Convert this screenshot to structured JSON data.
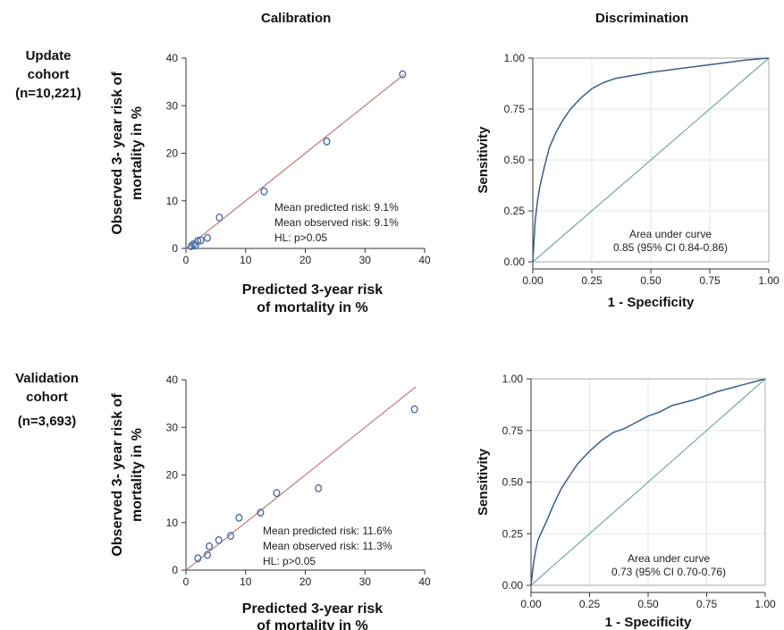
{
  "column_titles": {
    "calibration": "Calibration",
    "discrimination": "Discrimination"
  },
  "cohorts": [
    {
      "name_line1": "Update",
      "name_line2": "cohort",
      "n": "(n=10,221)"
    },
    {
      "name_line1": "Validation",
      "name_line2": "cohort",
      "n": "(n=3,693)"
    }
  ],
  "chart_data": [
    {
      "type": "scatter",
      "title": "Calibration",
      "cohort": "Update cohort (n=10,221)",
      "xlabel": [
        "Predicted 3-year risk",
        "of mortality in %"
      ],
      "ylabel": [
        "Observed 3- year risk of",
        "mortality in %"
      ],
      "xlim": [
        0,
        40
      ],
      "ylim": [
        0,
        40
      ],
      "xticks": [
        0,
        10,
        20,
        30,
        40
      ],
      "yticks": [
        0,
        10,
        20,
        30,
        40
      ],
      "points": [
        {
          "x": 0.9,
          "y": 0.5
        },
        {
          "x": 1.3,
          "y": 0.9
        },
        {
          "x": 1.6,
          "y": 0.6
        },
        {
          "x": 2.0,
          "y": 1.6
        },
        {
          "x": 2.5,
          "y": 1.7
        },
        {
          "x": 3.6,
          "y": 2.2
        },
        {
          "x": 5.6,
          "y": 6.5
        },
        {
          "x": 13.1,
          "y": 12.0
        },
        {
          "x": 23.6,
          "y": 22.5
        },
        {
          "x": 36.3,
          "y": 36.6
        }
      ],
      "reference_line": {
        "x": [
          0,
          36.5
        ],
        "y": [
          0,
          36.5
        ]
      },
      "annotations": [
        "Mean predicted risk: 9.1%",
        "Mean observed  risk: 9.1%",
        "HL: p>0.05"
      ],
      "grid": false
    },
    {
      "type": "line",
      "title": "Discrimination",
      "cohort": "Update cohort (n=10,221)",
      "xlabel": "1 - Specificity",
      "ylabel": "Sensitivity",
      "xlim": [
        0,
        1
      ],
      "ylim": [
        0,
        1
      ],
      "xticks": [
        "0.00",
        "0.25",
        "0.50",
        "0.75",
        "1.00"
      ],
      "yticks": [
        "0.00",
        "0.25",
        "0.50",
        "0.75",
        "1.00"
      ],
      "roc": {
        "x": [
          0,
          0.005,
          0.01,
          0.02,
          0.03,
          0.05,
          0.07,
          0.1,
          0.13,
          0.16,
          0.2,
          0.25,
          0.3,
          0.35,
          0.4,
          0.5,
          0.6,
          0.7,
          0.8,
          0.9,
          1.0
        ],
        "y": [
          0,
          0.1,
          0.2,
          0.3,
          0.37,
          0.47,
          0.56,
          0.64,
          0.7,
          0.75,
          0.8,
          0.85,
          0.88,
          0.9,
          0.91,
          0.93,
          0.945,
          0.96,
          0.975,
          0.99,
          1.0
        ]
      },
      "reference_line": {
        "x": [
          0,
          1
        ],
        "y": [
          0,
          1
        ]
      },
      "annotations": [
        "Area under curve",
        "0.85 (95% CI 0.84-0.86)"
      ],
      "grid": true
    },
    {
      "type": "scatter",
      "title": "Calibration",
      "cohort": "Validation cohort (n=3,693)",
      "xlabel": [
        "Predicted 3-year risk",
        "of mortality in %"
      ],
      "ylabel": [
        "Observed 3- year risk of",
        "mortality in %"
      ],
      "xlim": [
        0,
        40
      ],
      "ylim": [
        0,
        40
      ],
      "xticks": [
        0,
        10,
        20,
        30,
        40
      ],
      "yticks": [
        0,
        10,
        20,
        30,
        40
      ],
      "points": [
        {
          "x": 2.0,
          "y": 2.5
        },
        {
          "x": 3.6,
          "y": 3.2
        },
        {
          "x": 3.9,
          "y": 5.0
        },
        {
          "x": 5.5,
          "y": 6.3
        },
        {
          "x": 7.5,
          "y": 7.2
        },
        {
          "x": 8.9,
          "y": 11.0
        },
        {
          "x": 12.5,
          "y": 12.1
        },
        {
          "x": 15.2,
          "y": 16.2
        },
        {
          "x": 22.2,
          "y": 17.2
        },
        {
          "x": 38.3,
          "y": 33.8
        }
      ],
      "reference_line": {
        "x": [
          0,
          38.5
        ],
        "y": [
          0,
          38.5
        ]
      },
      "annotations": [
        "Mean predicted risk: 11.6%",
        "Mean observed  risk: 11.3%",
        "HL: p>0.05"
      ],
      "grid": false
    },
    {
      "type": "line",
      "title": "Discrimination",
      "cohort": "Validation cohort (n=3,693)",
      "xlabel": "1 - Specificity",
      "ylabel": "Sensitivity",
      "xlim": [
        0,
        1
      ],
      "ylim": [
        0,
        1
      ],
      "xticks": [
        "0.00",
        "0.25",
        "0.50",
        "0.75",
        "1.00"
      ],
      "yticks": [
        "0.00",
        "0.25",
        "0.50",
        "0.75",
        "1.00"
      ],
      "roc": {
        "x": [
          0,
          0.01,
          0.02,
          0.03,
          0.05,
          0.07,
          0.1,
          0.13,
          0.17,
          0.2,
          0.25,
          0.3,
          0.35,
          0.4,
          0.45,
          0.5,
          0.55,
          0.6,
          0.7,
          0.8,
          0.9,
          1.0
        ],
        "y": [
          0,
          0.1,
          0.17,
          0.22,
          0.27,
          0.32,
          0.4,
          0.47,
          0.54,
          0.59,
          0.65,
          0.7,
          0.74,
          0.76,
          0.79,
          0.82,
          0.84,
          0.87,
          0.9,
          0.94,
          0.97,
          1.0
        ]
      },
      "reference_line": {
        "x": [
          0,
          1
        ],
        "y": [
          0,
          1
        ]
      },
      "annotations": [
        "Area under curve",
        "0.73 (95% CI 0.70-0.76)"
      ],
      "grid": true
    }
  ],
  "colors": {
    "marker": "#4a6fa5",
    "calibration_line": "#c47b7b",
    "roc_curve": "#3a5d8c",
    "roc_reference": "#7aa89b",
    "grid": "#dce9e6",
    "text": "#222222"
  }
}
